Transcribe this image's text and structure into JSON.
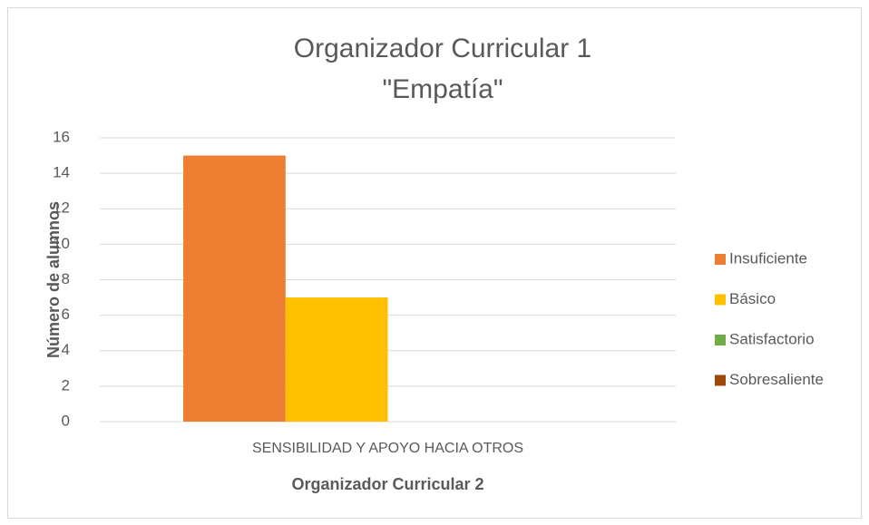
{
  "chart_data": {
    "type": "bar",
    "title": [
      "Organizador Curricular 1",
      "\"Empatía\""
    ],
    "categories": [
      "SENSIBILIDAD Y APOYO HACIA OTROS"
    ],
    "series": [
      {
        "name": "Insuficiente",
        "color": "#ED7D31",
        "values": [
          15
        ]
      },
      {
        "name": "Básico",
        "color": "#FFC000",
        "values": [
          7
        ]
      },
      {
        "name": "Satisfactorio",
        "color": "#70AD47",
        "values": [
          0
        ]
      },
      {
        "name": "Sobresaliente",
        "color": "#9E480E",
        "values": [
          0
        ]
      }
    ],
    "xlabel": "Organizador Curricular 2",
    "ylabel": "Número de alumnos",
    "ylim": [
      0,
      16
    ],
    "yticks": [
      0,
      2,
      4,
      6,
      8,
      10,
      12,
      14,
      16
    ],
    "grid": true,
    "legend": "right"
  }
}
